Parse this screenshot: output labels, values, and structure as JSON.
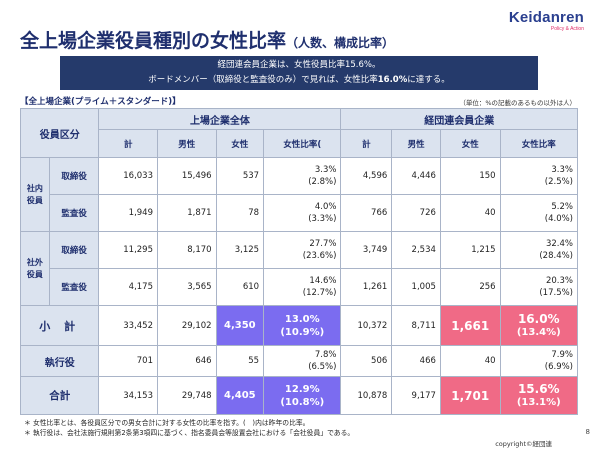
{
  "logo": {
    "main": "Keidanren",
    "sub": "Policy & Action"
  },
  "title": {
    "main": "全上場企業役員種別の女性比率",
    "sub": "（人数、構成比率）"
  },
  "banner": {
    "line1": "経団連会員企業は、女性役員比率15.6%。",
    "line2_a": "ボードメンバー（取締役と監査役のみ）で見れば、女性比率",
    "line2_b": "16.0%",
    "line2_c": "に達する。"
  },
  "subhead": "【全上場企業(プライム＋スタンダード)】",
  "unit_note": "（単位：%の記載のあるもの以外は人）",
  "table": {
    "category_header": "役員区分",
    "group_all": "上場企業全体",
    "group_keidanren": "経団連会員企業",
    "col_total": "計",
    "col_male": "男性",
    "col_female": "女性",
    "col_ratio_all": "女性比率(",
    "col_ratio_kd": "女性比率",
    "group_inside": "社内\n役員",
    "group_outside": "社外\n役員",
    "rows": [
      {
        "label": "取締役",
        "a_total": "16,033",
        "a_male": "15,496",
        "a_female": "537",
        "a_ratio": "3.3%",
        "a_prev": "(2.8%)",
        "k_total": "4,596",
        "k_male": "4,446",
        "k_female": "150",
        "k_ratio": "3.3%",
        "k_prev": "(2.5%)"
      },
      {
        "label": "監査役",
        "a_total": "1,949",
        "a_male": "1,871",
        "a_female": "78",
        "a_ratio": "4.0%",
        "a_prev": "(3.3%)",
        "k_total": "766",
        "k_male": "726",
        "k_female": "40",
        "k_ratio": "5.2%",
        "k_prev": "(4.0%)"
      },
      {
        "label": "取締役",
        "a_total": "11,295",
        "a_male": "8,170",
        "a_female": "3,125",
        "a_ratio": "27.7%",
        "a_prev": "(23.6%)",
        "k_total": "3,749",
        "k_male": "2,534",
        "k_female": "1,215",
        "k_ratio": "32.4%",
        "k_prev": "(28.4%)"
      },
      {
        "label": "監査役",
        "a_total": "4,175",
        "a_male": "3,565",
        "a_female": "610",
        "a_ratio": "14.6%",
        "a_prev": "(12.7%)",
        "k_total": "1,261",
        "k_male": "1,005",
        "k_female": "256",
        "k_ratio": "20.3%",
        "k_prev": "(17.5%)"
      }
    ],
    "subtotal": {
      "label": "小 計",
      "a_total": "33,452",
      "a_male": "29,102",
      "a_female": "4,350",
      "a_ratio": "13.0%",
      "a_prev": "(10.9%)",
      "k_total": "10,372",
      "k_male": "8,711",
      "k_female": "1,661",
      "k_ratio": "16.0%",
      "k_prev": "(13.4%)"
    },
    "executive": {
      "label": "執行役",
      "a_total": "701",
      "a_male": "646",
      "a_female": "55",
      "a_ratio": "7.8%",
      "a_prev": "(6.5%)",
      "k_total": "506",
      "k_male": "466",
      "k_female": "40",
      "k_ratio": "7.9%",
      "k_prev": "(6.9%)"
    },
    "total": {
      "label": "合計",
      "a_total": "34,153",
      "a_male": "29,748",
      "a_female": "4,405",
      "a_ratio": "12.9%",
      "a_prev": "(10.8%)",
      "k_total": "10,878",
      "k_male": "9,177",
      "k_female": "1,701",
      "k_ratio": "15.6%",
      "k_prev": "(13.1%)"
    }
  },
  "notes": [
    "＊ 女性比率とは、各役員区分での男女合計に対する女性の比率を指す。(　)内は昨年の比率。",
    "＊ 執行役は、会社法施行規則第2条第3項四に基づく、指名委員会等設置会社における「会社役員」である。"
  ],
  "page_number": "8",
  "copyright": "copyright©経団連",
  "colors": {
    "navy": "#253a6b",
    "header_bg": "#dbe3ef",
    "highlight_blue": "#7b6cf0",
    "highlight_pink": "#f06a86",
    "brand_pink": "#e0306a"
  }
}
